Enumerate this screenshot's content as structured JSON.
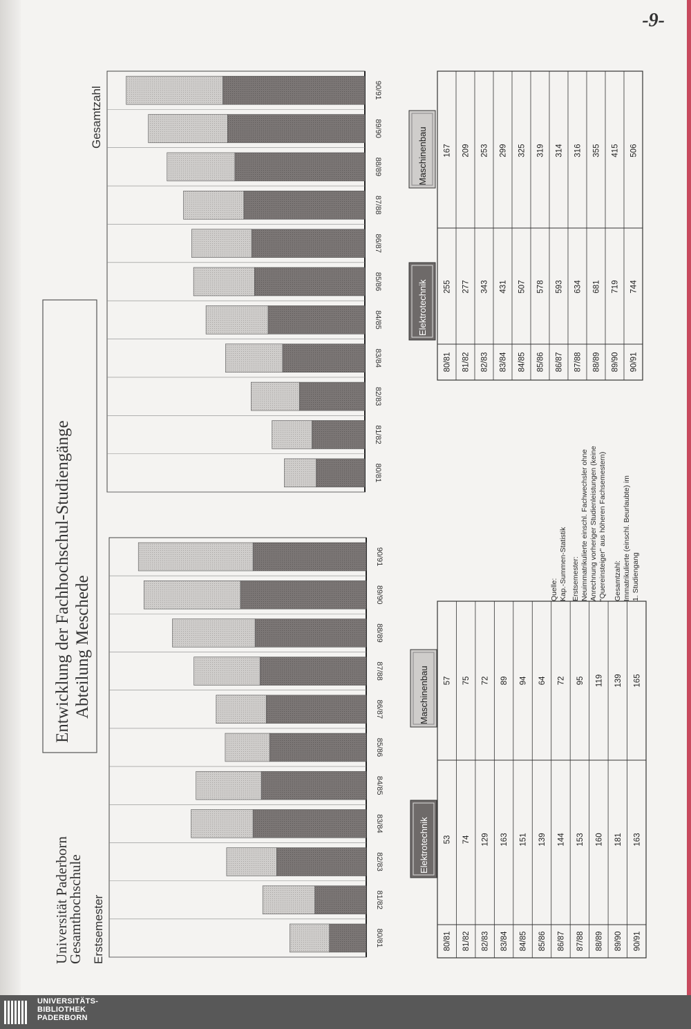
{
  "page_number": "-9-",
  "header": {
    "university": "Universität Paderborn",
    "school": "Gesamthochschule",
    "title_line1": "Entwicklung der Fachhochschul-Studiengänge",
    "title_line2": "Abteilung Meschede"
  },
  "legend": {
    "elektro": "Elektrotechnik",
    "maschinen": "Maschinenbau"
  },
  "colors": {
    "elektro": "#7b7675",
    "maschinen": "#c8c6c4"
  },
  "chart_data": [
    {
      "type": "bar",
      "title": "Erstsemester",
      "categories": [
        "80/81",
        "81/82",
        "82/83",
        "83/84",
        "84/85",
        "85/86",
        "86/87",
        "87/88",
        "88/89",
        "89/90",
        "90/91"
      ],
      "series": [
        {
          "name": "Elektrotechnik",
          "values": [
            53,
            74,
            129,
            163,
            151,
            139,
            144,
            153,
            160,
            181,
            163
          ]
        },
        {
          "name": "Maschinenbau",
          "values": [
            57,
            75,
            72,
            89,
            94,
            64,
            72,
            95,
            119,
            139,
            165
          ]
        }
      ],
      "stacked": true
    },
    {
      "type": "bar",
      "title": "Gesamtzahl",
      "categories": [
        "80/81",
        "81/82",
        "82/83",
        "83/84",
        "84/85",
        "85/86",
        "86/87",
        "87/88",
        "88/89",
        "89/90",
        "90/91"
      ],
      "series": [
        {
          "name": "Elektrotechnik",
          "values": [
            255,
            277,
            343,
            431,
            507,
            578,
            593,
            634,
            681,
            719,
            744
          ]
        },
        {
          "name": "Maschinenbau",
          "values": [
            167,
            209,
            253,
            299,
            325,
            319,
            314,
            316,
            355,
            415,
            506
          ]
        }
      ],
      "stacked": true
    }
  ],
  "notes": {
    "quelle_title": "Quelle:",
    "quelle": "Kap.-Summen-Statistik",
    "erstsemester_title": "Erstsemester:",
    "erstsemester_1": "Neuimmatrikulierte einschl. Fachwechsler ohne",
    "erstsemester_2": "Anrechnung vorheriger Studienleistungen (keine",
    "erstsemester_3": "\"Quereinsteiger\" aus höheren Fachsemestern)",
    "gesamt_title": "Gesamtzahl:",
    "gesamt_1": "Immatrikulierte (einschl. Beurlaubte) im",
    "gesamt_2": "1. Studiengang"
  },
  "footer": {
    "line1": "UNIVERSITÄTS-",
    "line2": "BIBLIOTHEK",
    "line3": "PADERBORN"
  }
}
